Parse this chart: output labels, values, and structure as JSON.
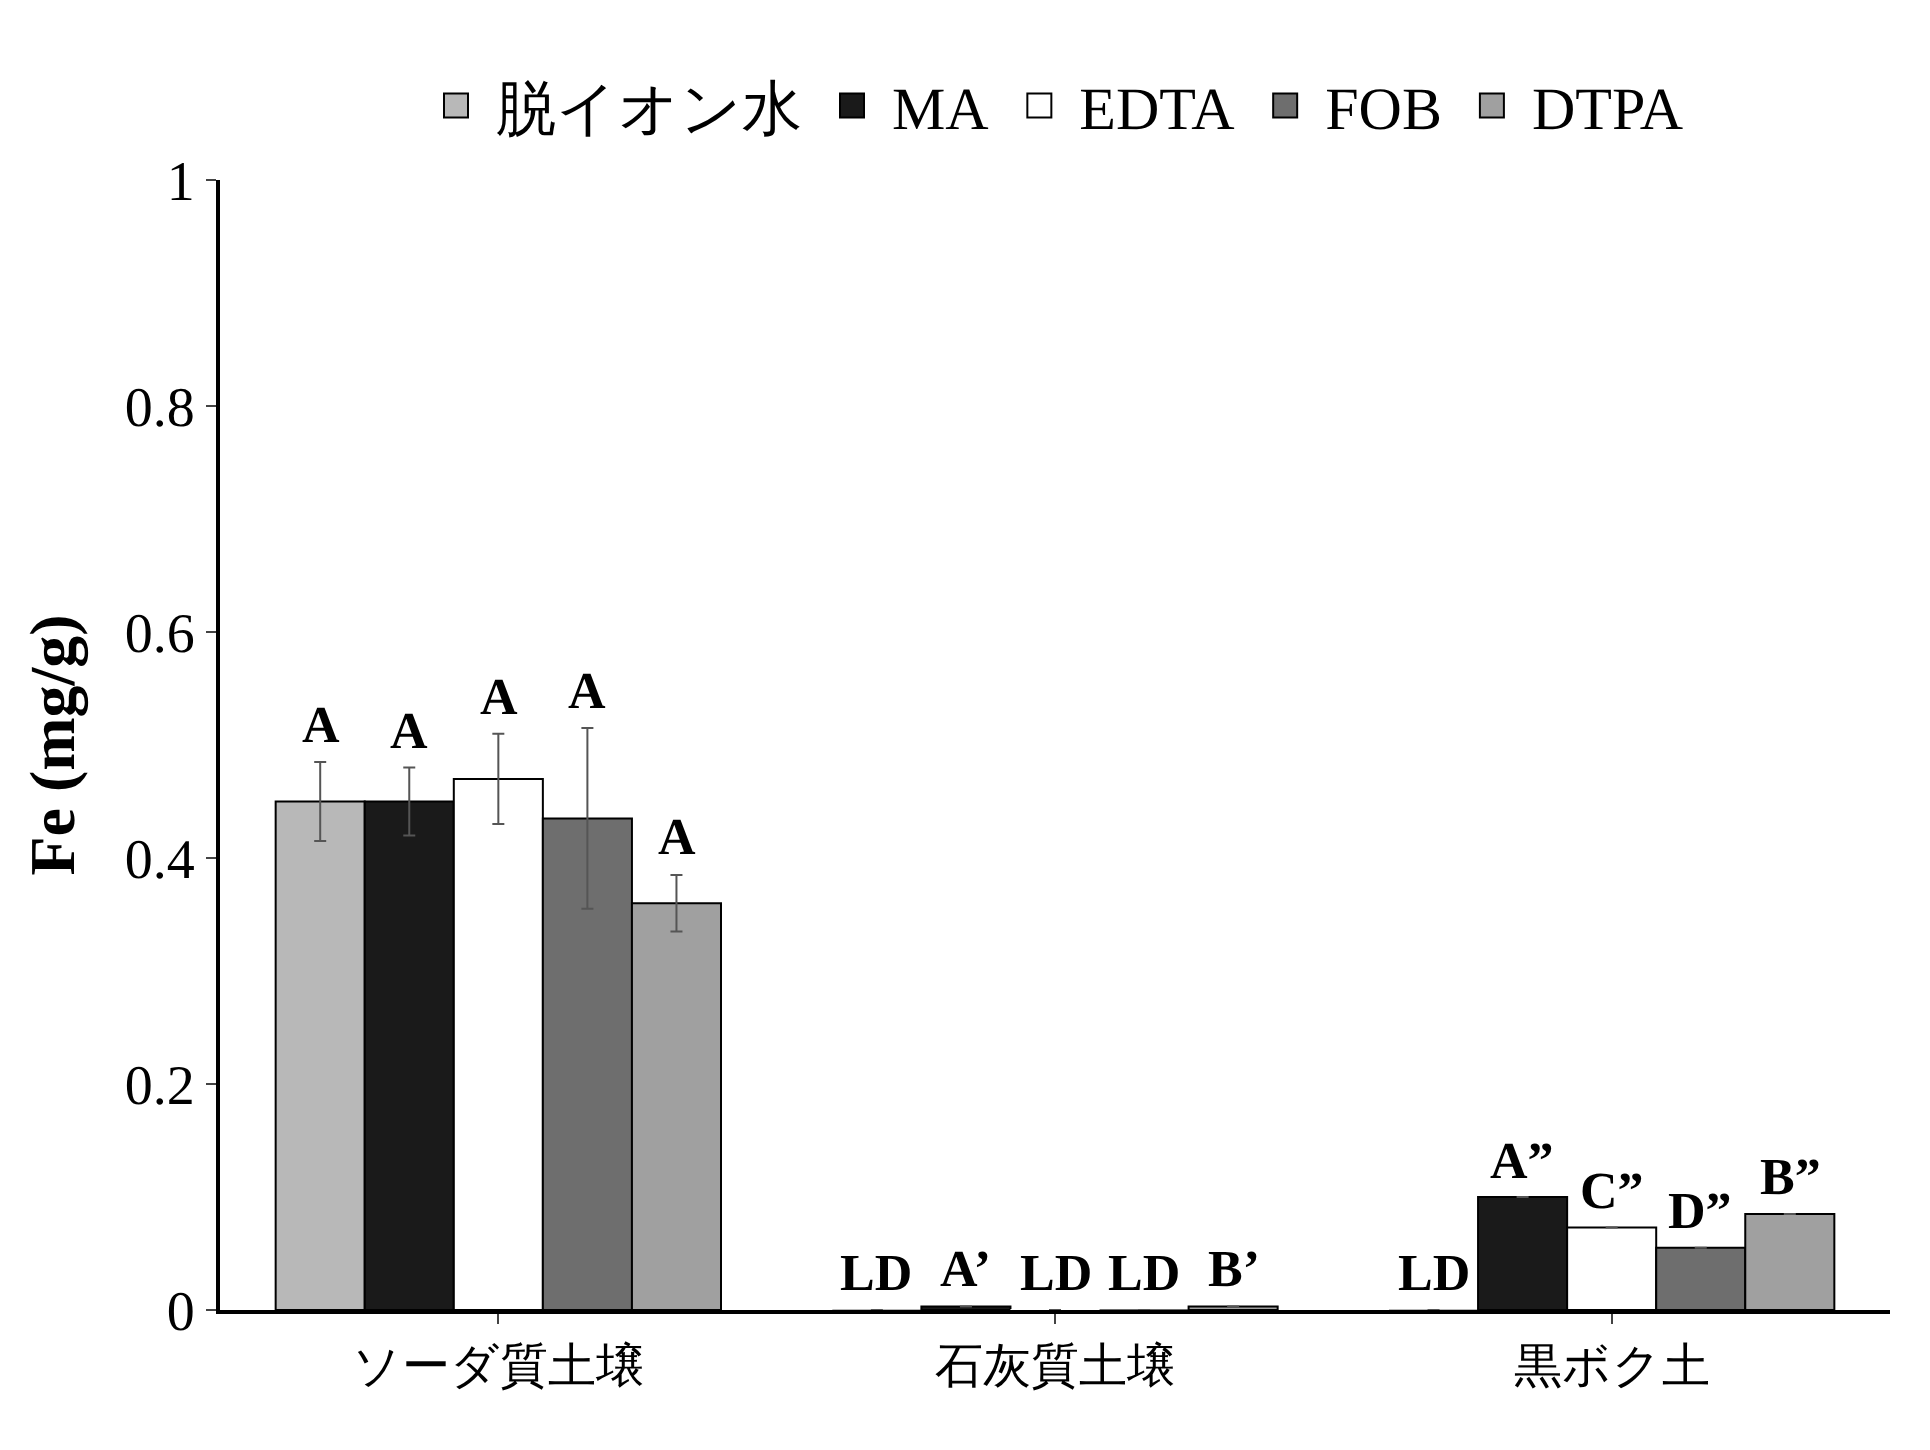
{
  "chart_data": {
    "type": "bar",
    "categories": [
      "ソーダ質土壌",
      "石灰質土壌",
      "黒ボク土"
    ],
    "ylabel": "Fe (mg/g)",
    "ylim": [
      0,
      1
    ],
    "yticks": [
      0,
      0.2,
      0.4,
      0.6,
      0.8,
      1
    ],
    "legend": "top",
    "series": [
      {
        "name": "脱イオン水",
        "color": "#b8b8b8",
        "values": [
          0.45,
          0,
          0
        ],
        "errors": [
          0.035,
          null,
          null
        ],
        "value_labels": [
          "A",
          "LD",
          "LD"
        ]
      },
      {
        "name": "MA",
        "color": "#1a1a1a",
        "values": [
          0.45,
          0.003,
          0.1
        ],
        "errors": [
          0.03,
          null,
          null
        ],
        "value_labels": [
          "A",
          "A’",
          "A”"
        ]
      },
      {
        "name": "EDTA",
        "color": "#ffffff",
        "values": [
          0.47,
          0,
          0.073
        ],
        "errors": [
          0.04,
          null,
          null
        ],
        "value_labels": [
          "A",
          "LD",
          "C”"
        ]
      },
      {
        "name": "FOB",
        "color": "#6e6e6e",
        "values": [
          0.435,
          0,
          0.055
        ],
        "errors": [
          0.08,
          null,
          null
        ],
        "value_labels": [
          "A",
          "LD",
          "D”"
        ]
      },
      {
        "name": "DTPA",
        "color": "#a0a0a0",
        "values": [
          0.36,
          0.003,
          0.085
        ],
        "errors": [
          0.025,
          null,
          null
        ],
        "value_labels": [
          "A",
          "B’",
          "B”"
        ]
      }
    ]
  }
}
